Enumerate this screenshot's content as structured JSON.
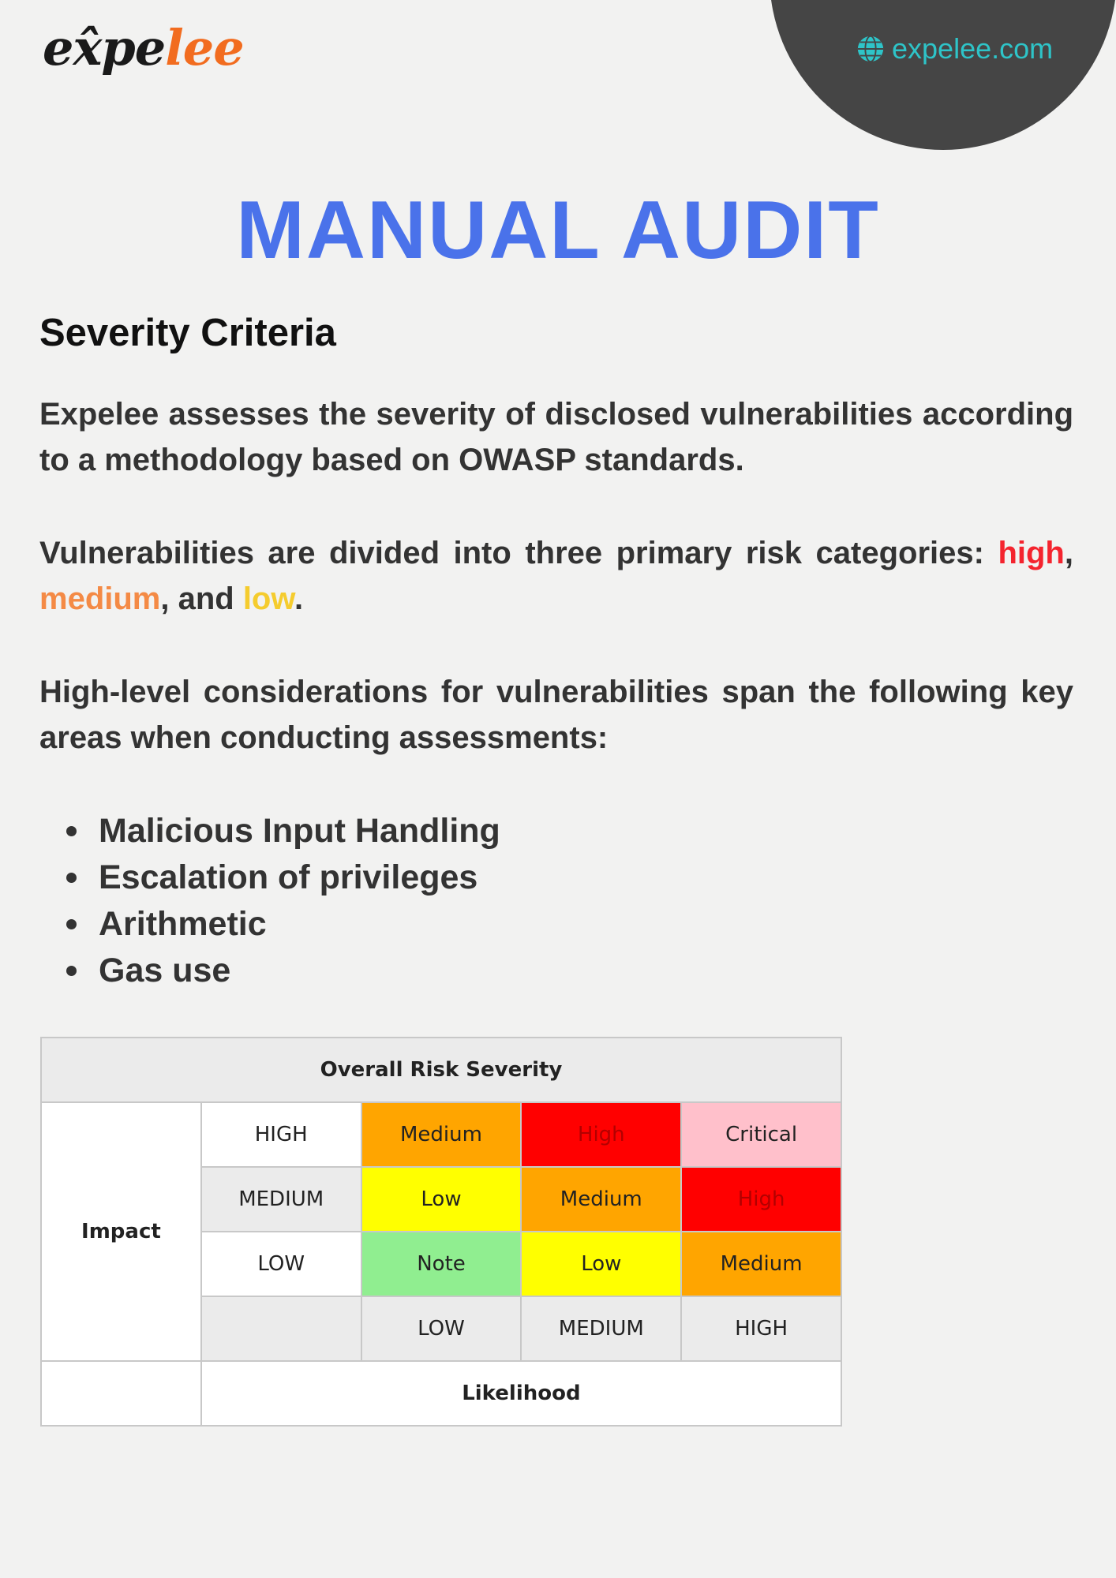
{
  "header": {
    "logo_dark": "ex̂pe",
    "logo_orange": "lee",
    "website": "expelee.com",
    "icon": "globe-icon"
  },
  "title": "MANUAL AUDIT",
  "subtitle": "Severity Criteria",
  "paragraphs": {
    "p1": "Expelee assesses the severity of disclosed vulnerabilities according to a methodology based on OWASP standards.",
    "p2_start": "Vulnerabilities are divided into three primary risk categories: ",
    "p2_high": "high",
    "p2_sep1": ", ",
    "p2_medium": "medium",
    "p2_sep2": ", and ",
    "p2_low": "low",
    "p2_end": ".",
    "p3": "High-level considerations for vulnerabilities span the following key areas when conducting assessments:"
  },
  "bullets": [
    "Malicious Input Handling",
    "Escalation of privileges",
    "Arithmetic",
    "Gas use"
  ],
  "risk_table": {
    "title": "Overall Risk Severity",
    "impact_label": "Impact",
    "likelihood_label": "Likelihood",
    "rows": [
      {
        "label": "HIGH",
        "cells": [
          "Medium",
          "High",
          "Critical"
        ]
      },
      {
        "label": "MEDIUM",
        "cells": [
          "Low",
          "Medium",
          "High"
        ]
      },
      {
        "label": "LOW",
        "cells": [
          "Note",
          "Low",
          "Medium"
        ]
      }
    ],
    "columns": [
      "LOW",
      "MEDIUM",
      "HIGH"
    ],
    "colors": {
      "Critical": "#ffc0cb",
      "High": "#ff0000",
      "Medium": "#ffa500",
      "Low": "#ffff00",
      "Note": "#90ee90"
    },
    "text_colors": {
      "High": "#b30000"
    }
  },
  "colors": {
    "title": "#4a72ea",
    "website": "#2ec4c8",
    "high": "#f4242e",
    "medium": "#f48a45",
    "low": "#f5cc2e"
  }
}
